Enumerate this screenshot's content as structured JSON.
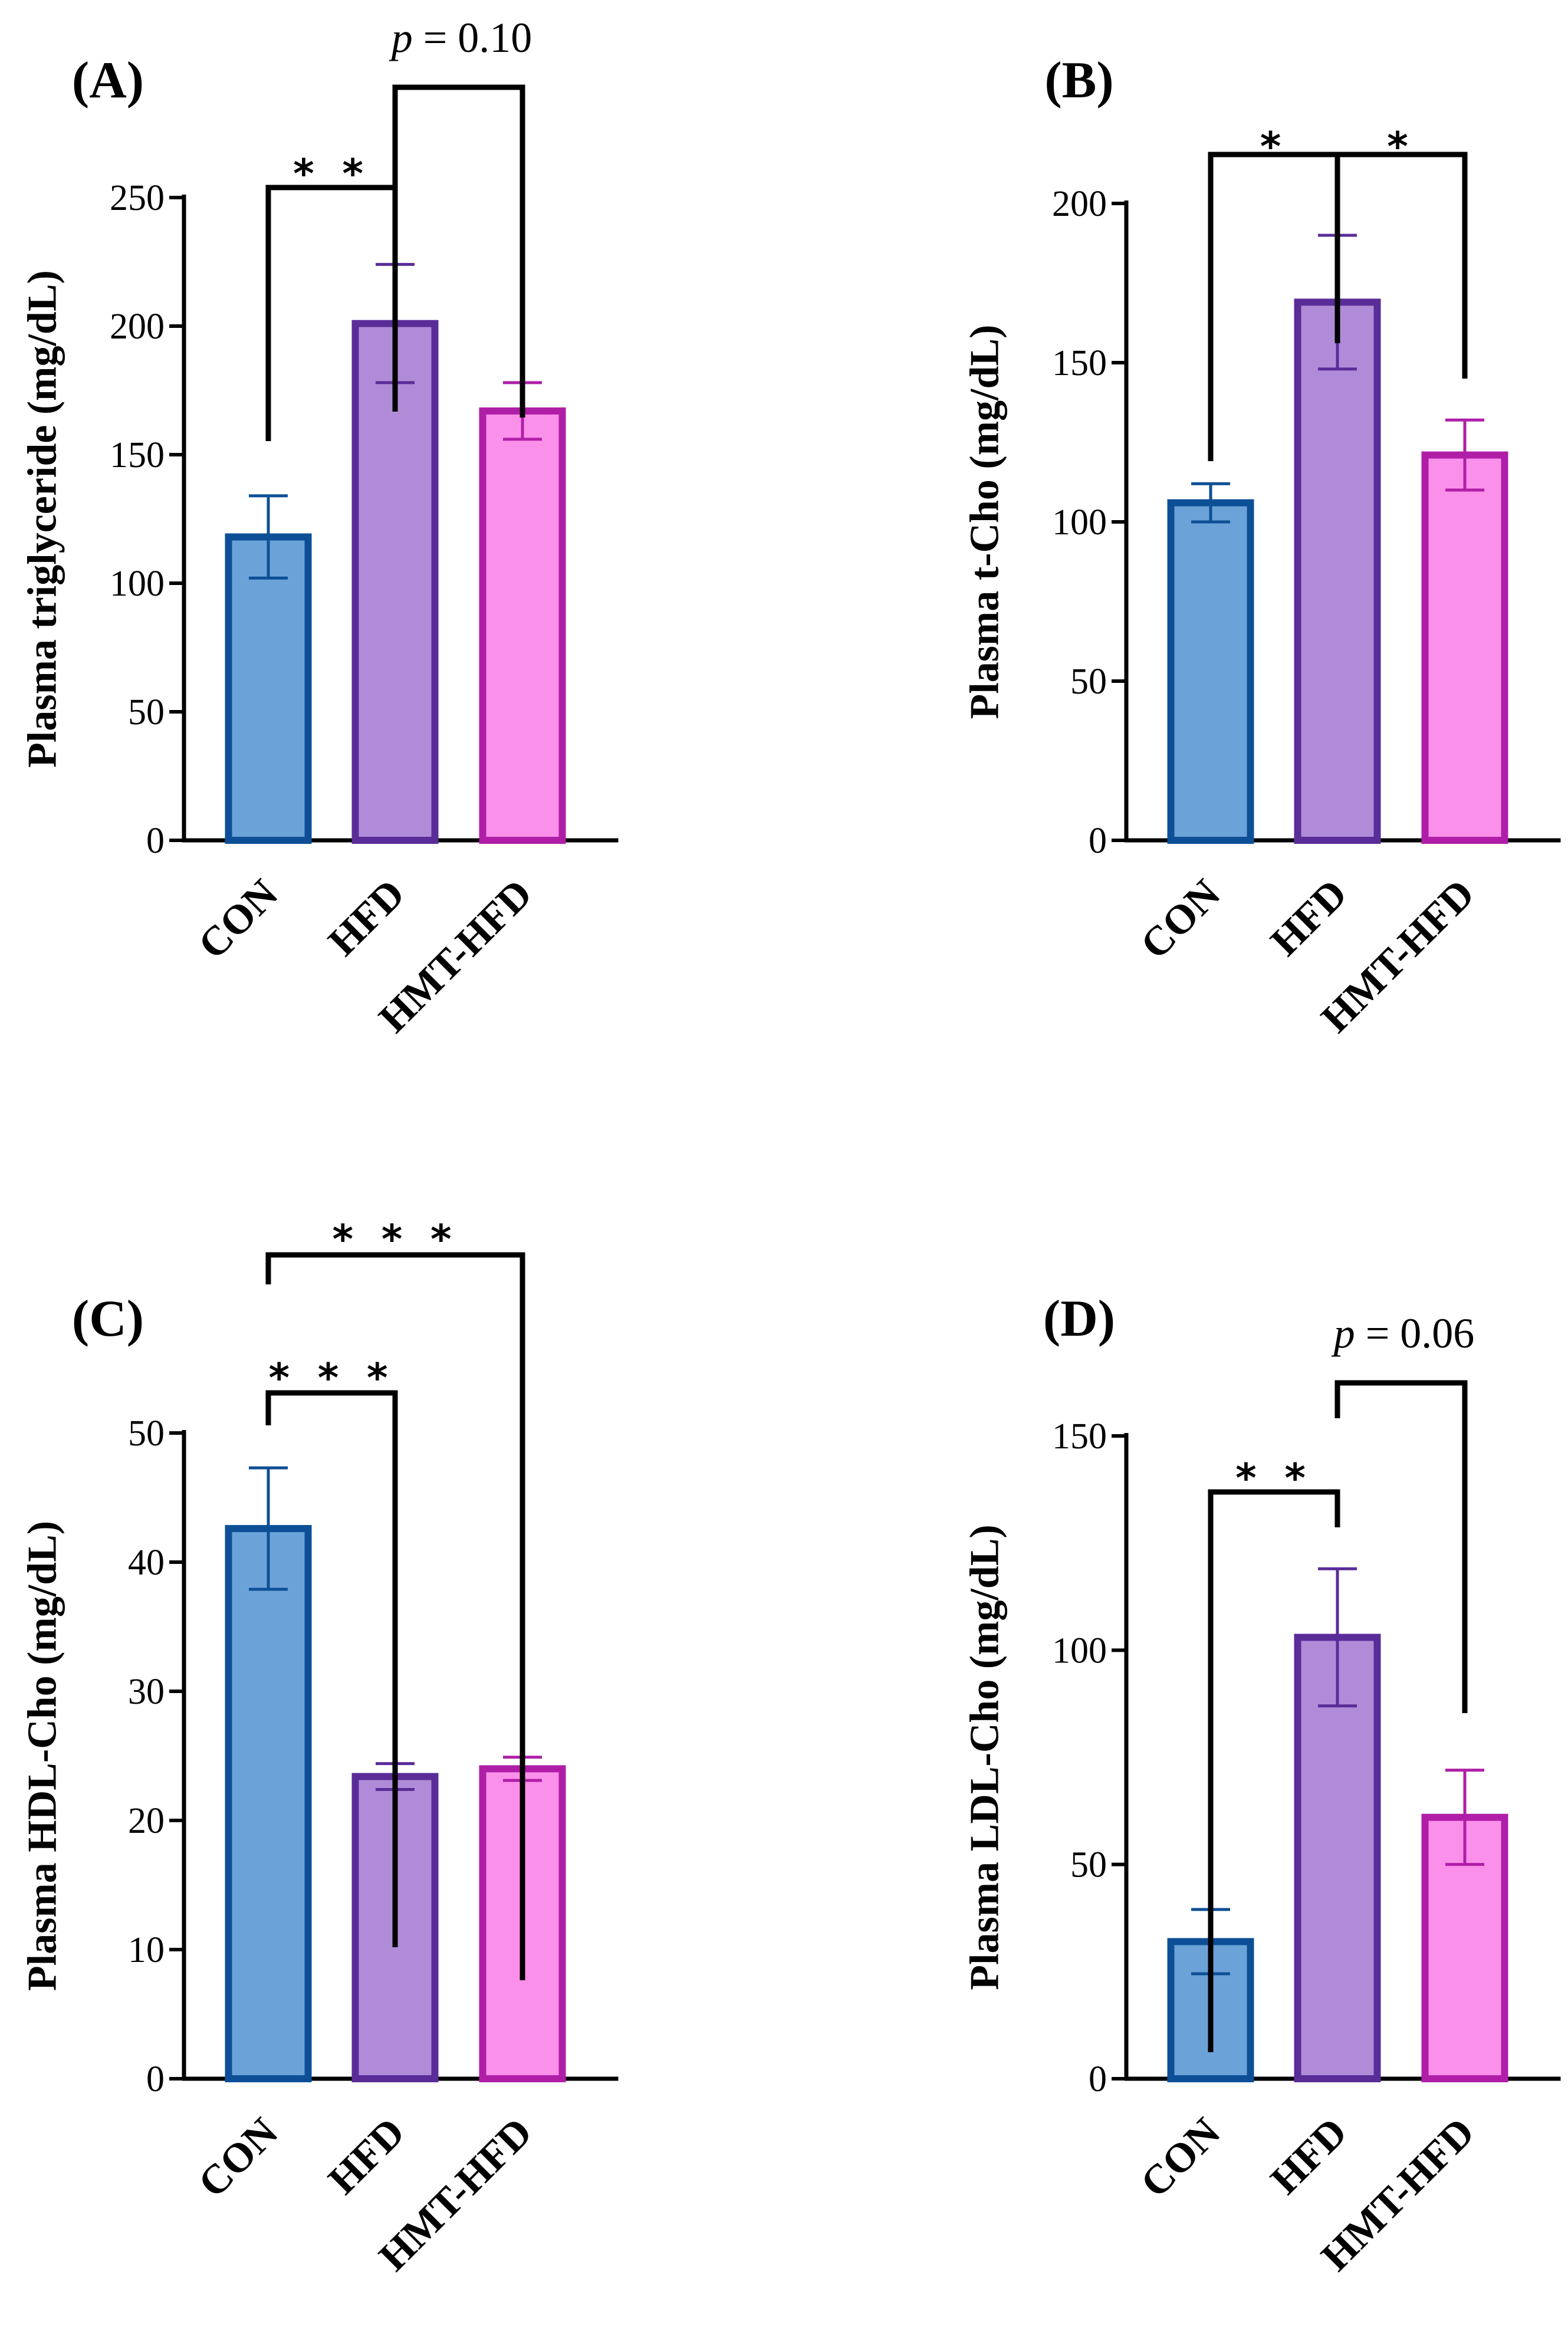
{
  "colors": {
    "CON": {
      "fill": "#6ba3d8",
      "stroke": "#0d4f96"
    },
    "HFD": {
      "fill": "#b08cd8",
      "stroke": "#5a2c98"
    },
    "HMT-HFD": {
      "fill": "#fb90ea",
      "stroke": "#b01ea8"
    }
  },
  "chart_data": [
    {
      "panel": "(A)",
      "type": "bar",
      "ylabel": "Plasma triglyceride (mg/dL)",
      "ylim": [
        0,
        250
      ],
      "yticks": [
        0,
        50,
        100,
        150,
        200,
        250
      ],
      "categories": [
        "CON",
        "HFD",
        "HMT-HFD"
      ],
      "values": [
        118,
        201,
        167
      ],
      "errors": [
        16,
        23,
        11
      ],
      "significance": [
        {
          "from": 0,
          "to": 1,
          "label": "* *",
          "kind": "stars"
        },
        {
          "from": 1,
          "to": 2,
          "label_italic": "p",
          "label_rest": " = 0.10",
          "kind": "p"
        }
      ]
    },
    {
      "panel": "(B)",
      "type": "bar",
      "ylabel": "Plasma t-Cho (mg/dL)",
      "ylim": [
        0,
        200
      ],
      "yticks": [
        0,
        50,
        100,
        150,
        200
      ],
      "categories": [
        "CON",
        "HFD",
        "HMT-HFD"
      ],
      "values": [
        106,
        169,
        121
      ],
      "errors": [
        6,
        21,
        11
      ],
      "significance": [
        {
          "from": 0,
          "to": 1,
          "label": "*",
          "kind": "stars"
        },
        {
          "from": 1,
          "to": 2,
          "label": "*",
          "kind": "stars"
        }
      ]
    },
    {
      "panel": "(C)",
      "type": "bar",
      "ylabel": "Plasma HDL-Cho (mg/dL)",
      "ylim": [
        0,
        50
      ],
      "yticks": [
        0,
        10,
        20,
        30,
        40,
        50
      ],
      "categories": [
        "CON",
        "HFD",
        "HMT-HFD"
      ],
      "values": [
        42.6,
        23.4,
        24.0
      ],
      "errors": [
        4.7,
        1.0,
        0.9
      ],
      "significance": [
        {
          "from": 0,
          "to": 1,
          "label": "* * *",
          "kind": "stars"
        },
        {
          "from": 0,
          "to": 2,
          "label": "* * *",
          "kind": "stars"
        }
      ]
    },
    {
      "panel": "(D)",
      "type": "bar",
      "ylabel": "Plasma LDL-Cho (mg/dL)",
      "ylim": [
        0,
        150
      ],
      "yticks": [
        0,
        50,
        100,
        150
      ],
      "categories": [
        "CON",
        "HFD",
        "HMT-HFD"
      ],
      "values": [
        32,
        103,
        61
      ],
      "errors": [
        7.5,
        16,
        11
      ],
      "significance": [
        {
          "from": 0,
          "to": 1,
          "label": "* *",
          "kind": "stars"
        },
        {
          "from": 1,
          "to": 2,
          "label_italic": "p",
          "label_rest": " = 0.06",
          "kind": "p"
        }
      ]
    }
  ]
}
